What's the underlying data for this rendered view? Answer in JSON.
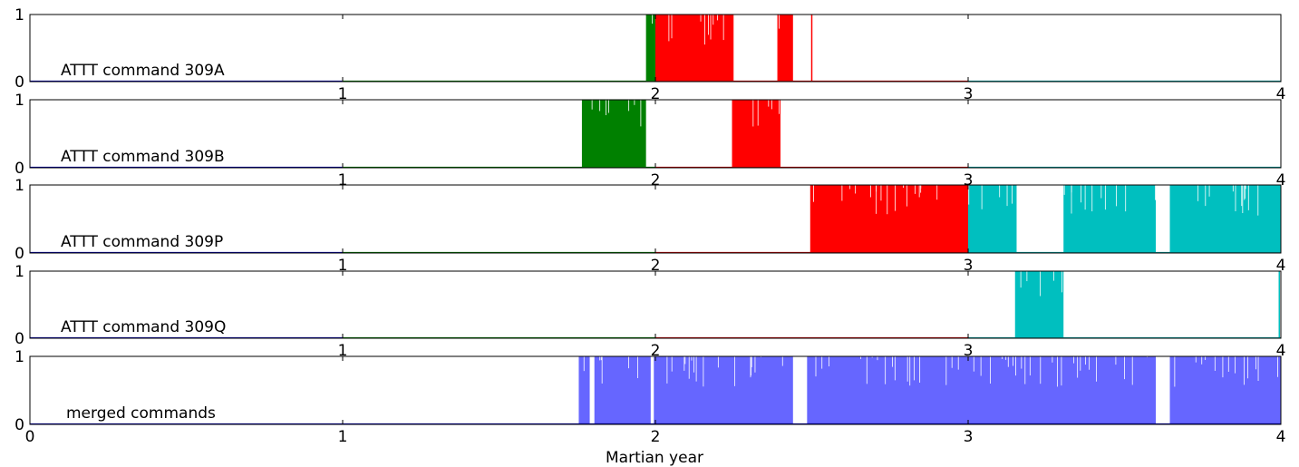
{
  "chart_data": [
    {
      "type": "area",
      "label": "ATTT command 309A",
      "xlabel": "",
      "ylabel": "",
      "xlim": [
        0,
        4
      ],
      "ylim": [
        0,
        1
      ],
      "x_ticks": [
        "",
        "1",
        "2",
        "3",
        "4"
      ],
      "y_ticks": [
        "0",
        "1"
      ],
      "baseline_segments": [
        {
          "from": 0,
          "to": 1,
          "color": "#0000b0"
        },
        {
          "from": 1,
          "to": 2,
          "color": "#007a00"
        },
        {
          "from": 2,
          "to": 3,
          "color": "#cc0000"
        },
        {
          "from": 3,
          "to": 4,
          "color": "#00a0a0"
        }
      ],
      "active_periods": [
        {
          "start": 1.97,
          "end": 2.0,
          "color": "#008000"
        },
        {
          "start": 2.0,
          "end": 2.25,
          "color": "#ff0000"
        },
        {
          "start": 2.39,
          "end": 2.44,
          "color": "#ff0000"
        }
      ],
      "spikes": [
        {
          "x": 2.5,
          "color": "#ff0000"
        }
      ]
    },
    {
      "type": "area",
      "label": "ATTT command 309B",
      "xlabel": "",
      "ylabel": "",
      "xlim": [
        0,
        4
      ],
      "ylim": [
        0,
        1
      ],
      "x_ticks": [
        "",
        "1",
        "2",
        "3",
        "4"
      ],
      "y_ticks": [
        "0",
        "1"
      ],
      "baseline_segments": [
        {
          "from": 0,
          "to": 1,
          "color": "#0000b0"
        },
        {
          "from": 1,
          "to": 2,
          "color": "#007a00"
        },
        {
          "from": 2,
          "to": 3,
          "color": "#cc0000"
        },
        {
          "from": 3,
          "to": 4,
          "color": "#00a0a0"
        }
      ],
      "active_periods": [
        {
          "start": 1.765,
          "end": 1.97,
          "color": "#008000"
        },
        {
          "start": 2.245,
          "end": 2.4,
          "color": "#ff0000"
        }
      ],
      "spikes": []
    },
    {
      "type": "area",
      "label": "ATTT command 309P",
      "xlabel": "",
      "ylabel": "",
      "xlim": [
        0,
        4
      ],
      "ylim": [
        0,
        1
      ],
      "x_ticks": [
        "",
        "1",
        "2",
        "3",
        "4"
      ],
      "y_ticks": [
        "0",
        "1"
      ],
      "baseline_segments": [
        {
          "from": 0,
          "to": 1,
          "color": "#0000b0"
        },
        {
          "from": 1,
          "to": 2,
          "color": "#007a00"
        },
        {
          "from": 2,
          "to": 3,
          "color": "#cc0000"
        },
        {
          "from": 3,
          "to": 4,
          "color": "#00a0a0"
        }
      ],
      "active_periods": [
        {
          "start": 2.495,
          "end": 3.0,
          "color": "#ff0000"
        },
        {
          "start": 3.0,
          "end": 3.155,
          "color": "#00bfbf"
        },
        {
          "start": 3.305,
          "end": 3.6,
          "color": "#00bfbf"
        },
        {
          "start": 3.645,
          "end": 4.0,
          "color": "#00bfbf"
        }
      ],
      "spikes": []
    },
    {
      "type": "area",
      "label": "ATTT command 309Q",
      "xlabel": "",
      "ylabel": "",
      "xlim": [
        0,
        4
      ],
      "ylim": [
        0,
        1
      ],
      "x_ticks": [
        "",
        "1",
        "2",
        "3",
        "4"
      ],
      "y_ticks": [
        "0",
        "1"
      ],
      "baseline_segments": [
        {
          "from": 0,
          "to": 1,
          "color": "#0000b0"
        },
        {
          "from": 1,
          "to": 2,
          "color": "#007a00"
        },
        {
          "from": 2,
          "to": 3,
          "color": "#cc0000"
        },
        {
          "from": 3,
          "to": 4,
          "color": "#00a0a0"
        }
      ],
      "active_periods": [
        {
          "start": 3.15,
          "end": 3.305,
          "color": "#00bfbf"
        }
      ],
      "spikes": [
        {
          "x": 3.995,
          "color": "#00bfbf"
        }
      ]
    },
    {
      "type": "area",
      "label": "merged commands",
      "xlabel": "Martian year",
      "ylabel": "",
      "xlim": [
        0,
        4
      ],
      "ylim": [
        0,
        1
      ],
      "x_ticks": [
        "0",
        "1",
        "2",
        "3",
        "4"
      ],
      "y_ticks": [
        "0",
        "1"
      ],
      "baseline_segments": [
        {
          "from": 0,
          "to": 4,
          "color": "#0000b0"
        }
      ],
      "active_periods": [
        {
          "start": 1.755,
          "end": 1.79,
          "color": "#6666ff"
        },
        {
          "start": 1.805,
          "end": 1.985,
          "color": "#6666ff"
        },
        {
          "start": 1.995,
          "end": 2.44,
          "color": "#6666ff"
        },
        {
          "start": 2.485,
          "end": 3.6,
          "color": "#6666ff"
        },
        {
          "start": 3.645,
          "end": 4.0,
          "color": "#6666ff"
        }
      ],
      "spikes": []
    }
  ]
}
